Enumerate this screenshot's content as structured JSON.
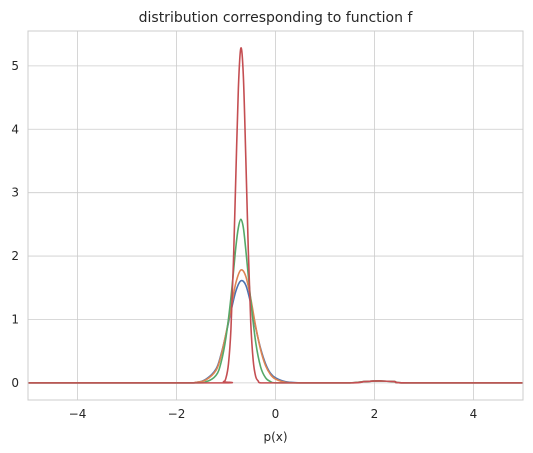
{
  "chart_data": {
    "type": "line",
    "title": "distribution corresponding to function f",
    "xlabel": "p(x)",
    "ylabel": "",
    "xlim": [
      -5,
      5
    ],
    "ylim": [
      -0.27,
      5.55
    ],
    "xticks": [
      -4,
      -2,
      0,
      2,
      4
    ],
    "xtick_labels": [
      "−4",
      "−2",
      "0",
      "2",
      "4"
    ],
    "yticks": [
      0,
      1,
      2,
      3,
      4,
      5
    ],
    "ytick_labels": [
      "0",
      "1",
      "2",
      "3",
      "4",
      "5"
    ],
    "grid": true,
    "legend": "none",
    "series": [
      {
        "color": "#4c72b0",
        "x": [
          -5,
          -2.0,
          -1.6,
          -1.4,
          -1.2,
          -1.1,
          -1.0,
          -0.9,
          -0.8,
          -0.7,
          -0.6,
          -0.5,
          -0.4,
          -0.3,
          -0.2,
          -0.1,
          0.0,
          0.2,
          0.5,
          1.0,
          1.5,
          1.8,
          2.1,
          2.4,
          2.7,
          5
        ],
        "y": [
          0,
          0,
          0.01,
          0.06,
          0.22,
          0.45,
          0.77,
          1.13,
          1.45,
          1.61,
          1.54,
          1.25,
          0.87,
          0.54,
          0.3,
          0.15,
          0.08,
          0.02,
          0.0,
          0.0,
          0.0,
          0.02,
          0.03,
          0.02,
          0.0,
          0
        ]
      },
      {
        "color": "#dd8452",
        "x": [
          -5,
          -2.0,
          -1.6,
          -1.4,
          -1.2,
          -1.1,
          -1.0,
          -0.9,
          -0.8,
          -0.7,
          -0.6,
          -0.5,
          -0.4,
          -0.3,
          -0.2,
          -0.1,
          0.0,
          0.2,
          0.5,
          1.0,
          1.5,
          1.8,
          2.1,
          2.4,
          2.7,
          5
        ],
        "y": [
          0,
          0,
          0.01,
          0.05,
          0.2,
          0.43,
          0.78,
          1.18,
          1.58,
          1.78,
          1.68,
          1.33,
          0.89,
          0.52,
          0.27,
          0.13,
          0.06,
          0.01,
          0.0,
          0.0,
          0.0,
          0.02,
          0.03,
          0.02,
          0.0,
          0
        ]
      },
      {
        "color": "#55a868",
        "x": [
          -5,
          -1.8,
          -1.4,
          -1.2,
          -1.1,
          -1.0,
          -0.9,
          -0.8,
          -0.75,
          -0.7,
          -0.65,
          -0.6,
          -0.5,
          -0.4,
          -0.3,
          -0.2,
          -0.1,
          0.0,
          0.5,
          1.5,
          1.8,
          2.1,
          2.4,
          2.7,
          5
        ],
        "y": [
          0,
          0,
          0.02,
          0.12,
          0.32,
          0.72,
          1.35,
          2.15,
          2.45,
          2.58,
          2.45,
          2.1,
          1.3,
          0.64,
          0.25,
          0.08,
          0.02,
          0.0,
          0.0,
          0.0,
          0.02,
          0.03,
          0.02,
          0.0,
          0
        ]
      },
      {
        "color": "#c44e52",
        "x": [
          -5,
          -1.2,
          -1.05,
          -1.0,
          -0.95,
          -0.9,
          -0.85,
          -0.8,
          -0.75,
          -0.7,
          -0.65,
          -0.6,
          -0.55,
          -0.5,
          -0.45,
          -0.4,
          -0.35,
          -0.3,
          0.0,
          1.5,
          1.8,
          2.1,
          2.4,
          2.7,
          5
        ],
        "y": [
          0,
          0,
          0.02,
          0.08,
          0.3,
          0.85,
          1.9,
          3.3,
          4.65,
          5.28,
          4.85,
          3.55,
          2.1,
          0.95,
          0.35,
          0.1,
          0.03,
          0.0,
          0.0,
          0.0,
          0.02,
          0.03,
          0.02,
          0.0,
          0
        ]
      }
    ]
  }
}
